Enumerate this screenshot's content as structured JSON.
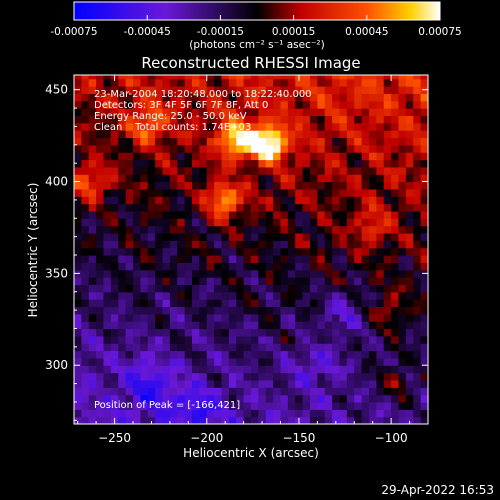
{
  "colorbar": {
    "tick_labels": [
      "-0.00075",
      "-0.00045",
      "-0.00015",
      "0.00015",
      "0.00045",
      "0.00075"
    ],
    "tick_values": [
      -0.00075,
      -0.00045,
      -0.00015,
      0.00015,
      0.00045,
      0.00075
    ],
    "range": [
      -0.00075,
      0.00075
    ],
    "unit_label": "(photons cm⁻² s⁻¹ asec⁻²)"
  },
  "chart_data": {
    "type": "heatmap",
    "title": "Reconstructed RHESSI Image",
    "xlabel": "Heliocentric X (arcsec)",
    "ylabel": "Heliocentric Y (arcsec)",
    "xlim": [
      -272,
      -80
    ],
    "ylim": [
      268,
      458
    ],
    "xticks": [
      -250,
      -200,
      -150,
      -100
    ],
    "yticks": [
      300,
      350,
      400,
      450
    ],
    "xtick_labels": [
      "−250",
      "−200",
      "−150",
      "−100"
    ],
    "ytick_labels": [
      "300",
      "350",
      "400",
      "450"
    ],
    "grid": false,
    "colormap": "blue-purple-black-red-orange-yellow-white",
    "annotations": [
      "23-Mar-2004 18:20:48.000 to 18:22:40.000",
      "Detectors: 3F 4F 5F 6F 7F 8F, Att 0",
      "Energy Range: 25.0 - 50.0 keV",
      "Clean    Total counts: 1.74E+03"
    ],
    "peak_label": "Position of Peak = [-166,421]",
    "peak_position": [
      -166,
      421
    ],
    "peak_value": 0.00075,
    "bright_sources": [
      {
        "x": -166,
        "y": 421,
        "value": 0.00075
      },
      {
        "x": -184,
        "y": 423,
        "value": 0.0006
      },
      {
        "x": -190,
        "y": 390,
        "value": 0.0005
      },
      {
        "x": -264,
        "y": 400,
        "value": 0.0004
      },
      {
        "x": -232,
        "y": 432,
        "value": 0.0004
      },
      {
        "x": -110,
        "y": 375,
        "value": 0.0003
      },
      {
        "x": -102,
        "y": 330,
        "value": 0.00025
      },
      {
        "x": -98,
        "y": 290,
        "value": 0.00025
      }
    ],
    "negative_sources": [
      {
        "x": -230,
        "y": 290,
        "value": -0.0005
      },
      {
        "x": -205,
        "y": 276,
        "value": -0.00045
      },
      {
        "x": -125,
        "y": 330,
        "value": -0.0004
      },
      {
        "x": -140,
        "y": 300,
        "value": -0.00035
      }
    ]
  },
  "footer": {
    "timestamp": "29-Apr-2022 16:53"
  }
}
